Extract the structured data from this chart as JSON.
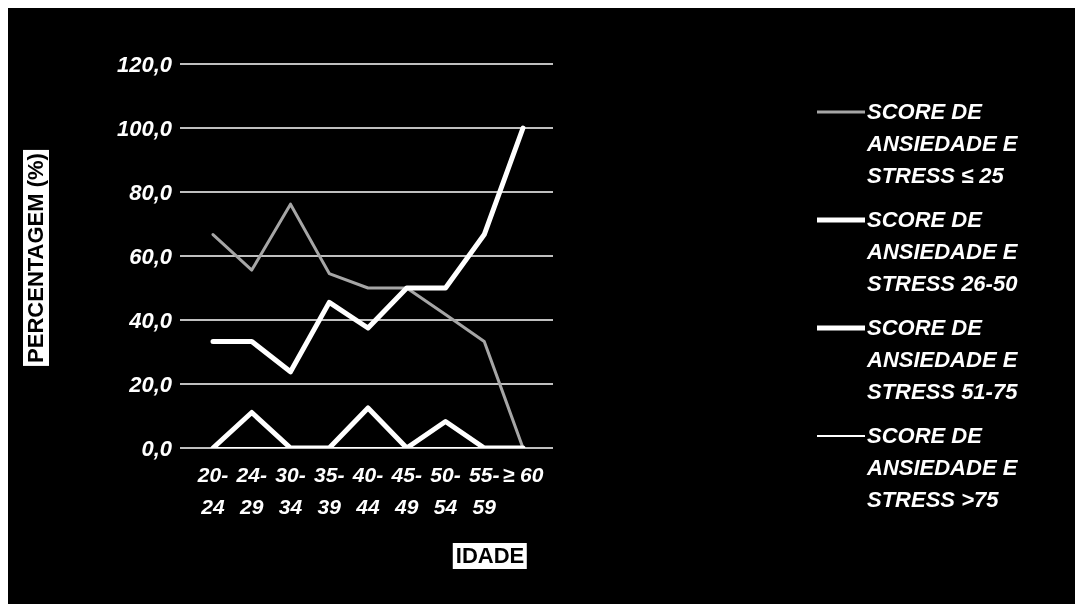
{
  "chart_data": {
    "type": "line",
    "xlabel": "IDADE",
    "ylabel": "PERCENTAGEM (%)",
    "categories": [
      "20-24",
      "24-29",
      "30-34",
      "35-39",
      "40-44",
      "45-49",
      "50-54",
      "55-59",
      "≥ 60"
    ],
    "series": [
      {
        "name": "SCORE DE ANSIEDADE E STRESS ≤ 25",
        "color": "#a6a6a6",
        "values": [
          66.7,
          55.6,
          76.2,
          54.5,
          50.0,
          50.0,
          41.7,
          33.3,
          0.0
        ]
      },
      {
        "name": "SCORE DE ANSIEDADE E STRESS 26-50",
        "color": "#ffffff",
        "values": [
          33.3,
          33.3,
          23.8,
          45.5,
          37.5,
          50.0,
          50.0,
          66.7,
          100.0
        ]
      },
      {
        "name": "SCORE DE ANSIEDADE E STRESS 51-75",
        "color": "#ffffff",
        "values": [
          0.0,
          11.1,
          0.0,
          0.0,
          12.5,
          0.0,
          8.3,
          0.0,
          0.0
        ]
      },
      {
        "name": "SCORE DE ANSIEDADE E STRESS >75",
        "color": "#ffffff",
        "values": [
          0.0,
          0.0,
          0.0,
          0.0,
          0.0,
          0.0,
          0.0,
          0.0,
          0.0
        ]
      }
    ],
    "ylim": [
      0,
      120
    ],
    "yticks": [
      {
        "value": 0,
        "label": "0,0"
      },
      {
        "value": 20,
        "label": "20,0"
      },
      {
        "value": 40,
        "label": "40,0"
      },
      {
        "value": 60,
        "label": "60,0"
      },
      {
        "value": 80,
        "label": "80,0"
      },
      {
        "value": 100,
        "label": "100,0"
      },
      {
        "value": 120,
        "label": "120,0"
      }
    ],
    "grid": "y",
    "legend": "right",
    "marker": "none",
    "line_style": "solid"
  }
}
